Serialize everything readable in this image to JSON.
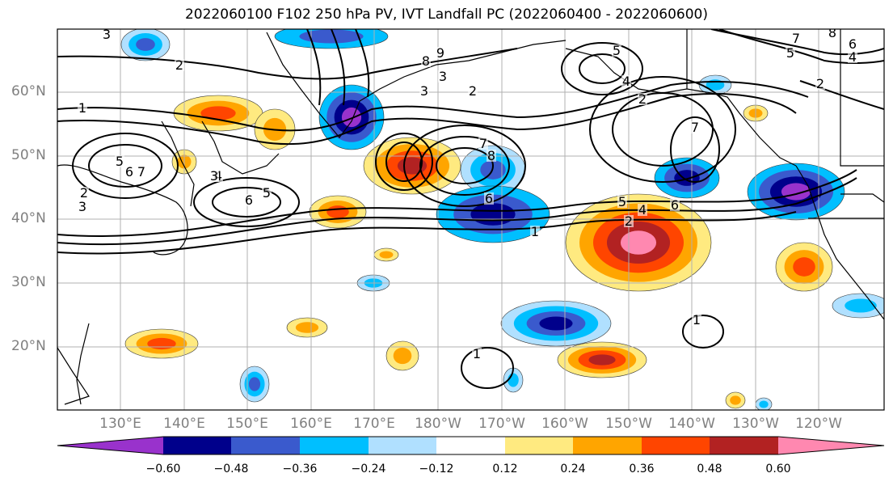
{
  "title": "2022060100 F102 250 hPa PV, IVT Landfall PC (2022060400 - 2022060600)",
  "lat_labels": [
    "60°N",
    "50°N",
    "40°N",
    "30°N",
    "20°N"
  ],
  "lon_labels": [
    "130°E",
    "140°E",
    "150°E",
    "160°E",
    "170°E",
    "180°W",
    "170°W",
    "160°W",
    "150°W",
    "140°W",
    "130°W",
    "120°W"
  ],
  "colorbar": {
    "tick_labels": [
      "−0.60",
      "−0.48",
      "−0.36",
      "−0.24",
      "−0.12",
      "0.12",
      "0.24",
      "0.36",
      "0.48",
      "0.60"
    ],
    "colors": [
      "#9932cc",
      "#00008b",
      "#3a5acd",
      "#00bfff",
      "#b0e0ff",
      "#ffffff",
      "#ffea80",
      "#ffa500",
      "#ff4500",
      "#b22222",
      "#ff88b0"
    ]
  },
  "contour_labels": [
    "3",
    "2",
    "1",
    "2",
    "3",
    "6",
    "5",
    "7",
    "6",
    "5",
    "4",
    "3",
    "8",
    "9",
    "3",
    "2",
    "5",
    "4",
    "2",
    "7",
    "8",
    "6",
    "5",
    "4",
    "2",
    "7",
    "6",
    "3",
    "8",
    "7",
    "6",
    "5",
    "4",
    "2",
    "1",
    "1",
    "1"
  ]
}
